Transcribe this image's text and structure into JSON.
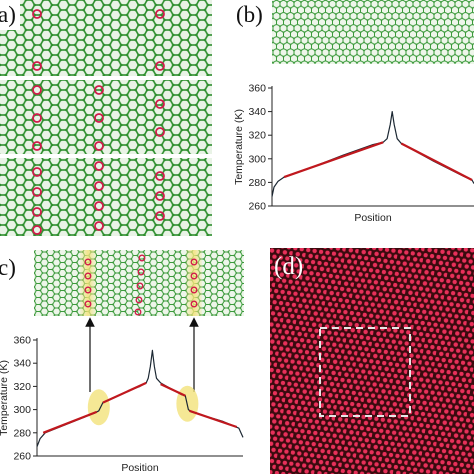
{
  "panels": {
    "a": {
      "label": "a)"
    },
    "b": {
      "label": "(b)"
    },
    "c": {
      "label": "c)"
    },
    "d": {
      "label": "(d)"
    }
  },
  "colors": {
    "lattice_green": "#2f8f2f",
    "defect_red": "#d11a4a",
    "fit_line": "#c0181e",
    "profile_line": "#1c2833",
    "highlight_yellow": "#f3e27a",
    "stem_background": "#3a0a0e",
    "stem_atom": "#e8305a"
  },
  "chart_data": [
    {
      "type": "line",
      "panel": "b",
      "title": "",
      "xlabel": "Position",
      "ylabel": "Temperature (K)",
      "ylim": [
        260,
        360
      ],
      "yticks": [
        260,
        280,
        300,
        320,
        340,
        360
      ],
      "xlim": [
        0,
        1
      ],
      "series": [
        {
          "values": [
            {
              "x": 0.0,
              "y": 268
            },
            {
              "x": 0.01,
              "y": 276
            },
            {
              "x": 0.03,
              "y": 281
            },
            {
              "x": 0.06,
              "y": 284.5
            },
            {
              "x": 0.2,
              "y": 293
            },
            {
              "x": 0.35,
              "y": 303
            },
            {
              "x": 0.5,
              "y": 312
            },
            {
              "x": 0.55,
              "y": 314
            },
            {
              "x": 0.57,
              "y": 317
            },
            {
              "x": 0.585,
              "y": 329
            },
            {
              "x": 0.595,
              "y": 340
            },
            {
              "x": 0.605,
              "y": 329
            },
            {
              "x": 0.62,
              "y": 317
            },
            {
              "x": 0.64,
              "y": 313
            },
            {
              "x": 0.8,
              "y": 298
            },
            {
              "x": 0.95,
              "y": 285
            },
            {
              "x": 0.99,
              "y": 282
            },
            {
              "x": 1.0,
              "y": 279
            }
          ]
        },
        {
          "values": [
            {
              "x": 0.06,
              "y": 284.5
            },
            {
              "x": 0.55,
              "y": 314
            }
          ]
        },
        {
          "values": [
            {
              "x": 0.64,
              "y": 313
            },
            {
              "x": 0.99,
              "y": 282
            }
          ]
        }
      ]
    },
    {
      "type": "line",
      "panel": "c",
      "title": "",
      "xlabel": "Position",
      "ylabel": "Temperature (K)",
      "ylim": [
        260,
        360
      ],
      "yticks": [
        260,
        280,
        300,
        320,
        340,
        360
      ],
      "xlim": [
        0,
        1
      ],
      "series": [
        {
          "values": [
            {
              "x": 0.0,
              "y": 268
            },
            {
              "x": 0.015,
              "y": 275
            },
            {
              "x": 0.04,
              "y": 280
            },
            {
              "x": 0.28,
              "y": 297
            },
            {
              "x": 0.3,
              "y": 299
            },
            {
              "x": 0.32,
              "y": 306
            },
            {
              "x": 0.47,
              "y": 318
            },
            {
              "x": 0.5,
              "y": 320
            },
            {
              "x": 0.53,
              "y": 323
            },
            {
              "x": 0.54,
              "y": 327
            },
            {
              "x": 0.55,
              "y": 337
            },
            {
              "x": 0.56,
              "y": 351
            },
            {
              "x": 0.57,
              "y": 337
            },
            {
              "x": 0.58,
              "y": 327
            },
            {
              "x": 0.6,
              "y": 323
            },
            {
              "x": 0.7,
              "y": 313
            },
            {
              "x": 0.72,
              "y": 312
            },
            {
              "x": 0.735,
              "y": 300
            },
            {
              "x": 0.75,
              "y": 298
            },
            {
              "x": 0.9,
              "y": 290
            },
            {
              "x": 0.98,
              "y": 284
            },
            {
              "x": 1.0,
              "y": 276
            }
          ]
        },
        {
          "values": [
            {
              "x": 0.03,
              "y": 280
            },
            {
              "x": 0.29,
              "y": 298
            }
          ]
        },
        {
          "values": [
            {
              "x": 0.32,
              "y": 306
            },
            {
              "x": 0.53,
              "y": 323
            }
          ]
        },
        {
          "values": [
            {
              "x": 0.6,
              "y": 322
            },
            {
              "x": 0.72,
              "y": 312
            }
          ]
        },
        {
          "values": [
            {
              "x": 0.74,
              "y": 299
            },
            {
              "x": 0.97,
              "y": 285
            }
          ]
        }
      ],
      "annotations": [
        {
          "type": "ellipse",
          "x": 0.3,
          "y": 302
        },
        {
          "type": "ellipse",
          "x": 0.73,
          "y": 305
        }
      ]
    }
  ]
}
